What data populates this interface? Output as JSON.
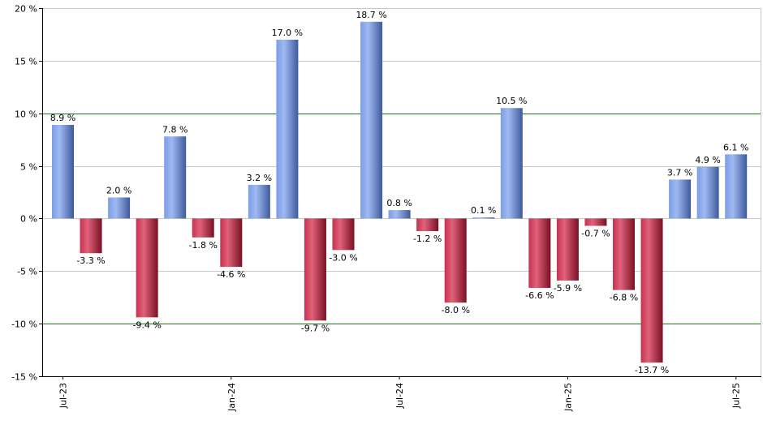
{
  "chart_data": {
    "type": "bar",
    "title": "",
    "xlabel": "",
    "ylabel": "",
    "values": [
      8.9,
      -3.3,
      2.0,
      -9.4,
      7.8,
      -1.8,
      -4.6,
      3.2,
      17.0,
      -9.7,
      -3.0,
      18.7,
      0.8,
      -1.2,
      -8.0,
      0.1,
      10.5,
      -6.6,
      -5.9,
      -0.7,
      -6.8,
      -13.7,
      3.7,
      4.9,
      6.1
    ],
    "value_labels": [
      "8.9 %",
      "-3.3 %",
      "2.0 %",
      "-9.4 %",
      "7.8 %",
      "-1.8 %",
      "-4.6 %",
      "3.2 %",
      "17.0 %",
      "-9.7 %",
      "-3.0 %",
      "18.7 %",
      "0.8 %",
      "-1.2 %",
      "-8.0 %",
      "0.1 %",
      "10.5 %",
      "-6.6 %",
      "-5.9 %",
      "-0.7 %",
      "-6.8 %",
      "-13.7 %",
      "3.7 %",
      "4.9 %",
      "6.1 %"
    ],
    "ylim": [
      -15,
      20
    ],
    "y_ticks": [
      {
        "value": 20,
        "label": "20 %"
      },
      {
        "value": 15,
        "label": "15 %"
      },
      {
        "value": 10,
        "label": "10 %"
      },
      {
        "value": 5,
        "label": "5 %"
      },
      {
        "value": 0,
        "label": "0 %"
      },
      {
        "value": -5,
        "label": "-5 %"
      },
      {
        "value": -10,
        "label": "-10 %"
      },
      {
        "value": -15,
        "label": "-15 %"
      }
    ],
    "x_ticks": [
      {
        "index": 0,
        "label": "Jul-23"
      },
      {
        "index": 6,
        "label": "Jan-24"
      },
      {
        "index": 12,
        "label": "Jul-24"
      },
      {
        "index": 18,
        "label": "Jan-25"
      },
      {
        "index": 24,
        "label": "Jul-25"
      }
    ],
    "reference_lines": [
      10,
      -10
    ],
    "grid": true,
    "colors": {
      "positive": "#7b9de6",
      "positive_dark": "#3f5a9c",
      "negative": "#c8304e",
      "negative_dark": "#7a1024",
      "grid": "#c8c8c8",
      "reference_line": "#1a7a1a",
      "axis": "#000000"
    }
  }
}
